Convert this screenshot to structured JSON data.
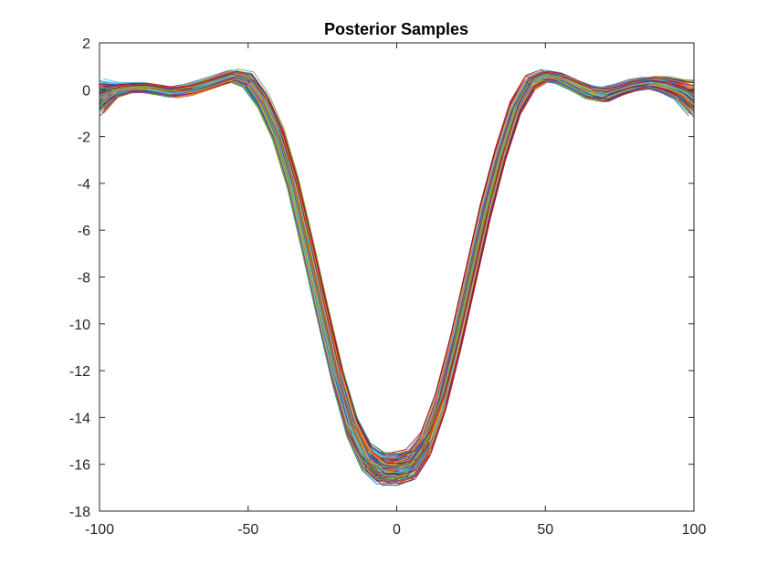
{
  "chart_data": {
    "type": "line",
    "title": "Posterior Samples",
    "xlabel": "",
    "ylabel": "",
    "xlim": [
      -100,
      100
    ],
    "ylim": [
      -18,
      2
    ],
    "xticks": [
      -100,
      -50,
      0,
      50,
      100
    ],
    "yticks": [
      2,
      0,
      -2,
      -4,
      -6,
      -8,
      -10,
      -12,
      -14,
      -16,
      -18
    ],
    "xtick_labels": [
      "-100",
      "-50",
      "0",
      "50",
      "100"
    ],
    "ytick_labels": [
      "2",
      "0",
      "-2",
      "-4",
      "-6",
      "-8",
      "-10",
      "-12",
      "-14",
      "-16",
      "-18"
    ],
    "grid": false,
    "legend": "none",
    "colors": [
      "#0072bd",
      "#d95319",
      "#edb120",
      "#7e2f8e",
      "#77ac30",
      "#4dbeee",
      "#a2142f"
    ],
    "num_series": 140,
    "x": [
      -100,
      -95,
      -90,
      -85,
      -80,
      -75,
      -70,
      -65,
      -60,
      -55,
      -50,
      -45,
      -40,
      -35,
      -30,
      -25,
      -20,
      -15,
      -10,
      -5,
      0,
      5,
      10,
      15,
      20,
      25,
      30,
      35,
      40,
      45,
      50,
      55,
      60,
      65,
      70,
      75,
      80,
      85,
      90,
      95,
      100
    ],
    "mean_curve": [
      -0.3,
      0.0,
      0.1,
      0.1,
      0.0,
      -0.1,
      0.0,
      0.2,
      0.4,
      0.6,
      0.4,
      -0.5,
      -1.9,
      -4.0,
      -6.7,
      -9.5,
      -12.2,
      -14.4,
      -15.7,
      -16.2,
      -16.2,
      -16.0,
      -15.1,
      -13.3,
      -10.8,
      -8.0,
      -5.2,
      -2.8,
      -0.8,
      0.3,
      0.6,
      0.5,
      0.2,
      -0.1,
      -0.2,
      0.0,
      0.2,
      0.3,
      0.2,
      0.0,
      -0.4
    ],
    "band_halfwidth": [
      0.9,
      0.4,
      0.3,
      0.3,
      0.3,
      0.3,
      0.3,
      0.3,
      0.3,
      0.3,
      0.4,
      0.4,
      0.4,
      0.4,
      0.5,
      0.5,
      0.5,
      0.6,
      0.7,
      0.8,
      0.8,
      0.8,
      0.7,
      0.6,
      0.5,
      0.5,
      0.5,
      0.4,
      0.4,
      0.4,
      0.3,
      0.3,
      0.3,
      0.4,
      0.4,
      0.3,
      0.3,
      0.3,
      0.4,
      0.5,
      0.9
    ]
  }
}
